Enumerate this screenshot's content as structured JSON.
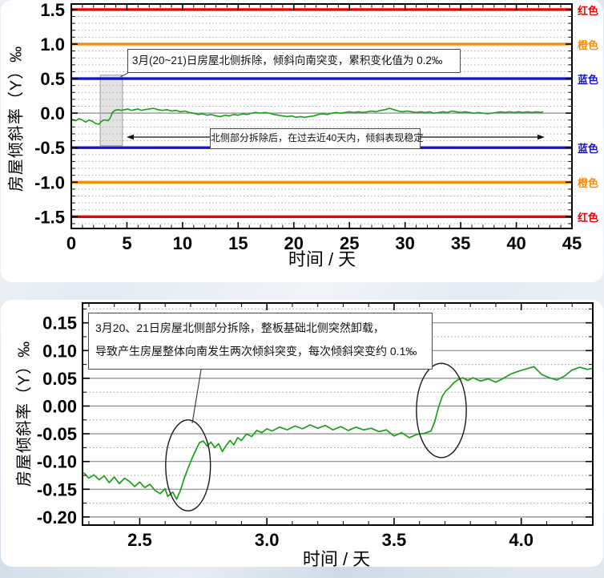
{
  "colors": {
    "series_green": "#18a018",
    "red_line": "#f00000",
    "orange_line": "#ff8a00",
    "blue_line": "#1414cc",
    "grid_gray": "#aaaaaa",
    "zero_line_gray": "#8a8a8a",
    "band_fill": "rgba(125,125,125,0.22)",
    "page_background": "#dde5f0"
  },
  "chart_data": [
    {
      "type": "line",
      "xlabel": "时间 / 天",
      "ylabel": "房屋倾斜率（Y）‰",
      "xlim": [
        0,
        45
      ],
      "ylim": [
        -1.5,
        1.5
      ],
      "xticks": [
        "0",
        "5",
        "10",
        "15",
        "20",
        "25",
        "30",
        "35",
        "40",
        "45"
      ],
      "yticks": [
        "1.5",
        "1.0",
        "0.5",
        "0.0",
        "-0.5",
        "-1.0",
        "-1.5"
      ],
      "x_minor_step": 1,
      "y_minor_step": 0.1,
      "grid": "horizontal dotted every 0.1, solid gray at 0",
      "legend": "none",
      "threshold_lines": [
        {
          "value": 1.5,
          "label": "红色",
          "color": "#f00000"
        },
        {
          "value": 1.0,
          "label": "橙色",
          "color": "#ff8a00"
        },
        {
          "value": 0.5,
          "label": "蓝色",
          "color": "#1414cc"
        },
        {
          "value": -0.5,
          "label": "蓝色",
          "color": "#1414cc"
        },
        {
          "value": -1.0,
          "label": "橙色",
          "color": "#ff8a00"
        },
        {
          "value": -1.5,
          "label": "红色",
          "color": "#f00000"
        }
      ],
      "highlight_band": {
        "x1": 2.6,
        "x2": 4.6,
        "y1": -0.47,
        "y2": 0.55
      },
      "annotations": [
        {
          "text": "3月(20~21)日房屋北侧拆除，倾斜向南突变，累积变化值为 0.2‰"
        },
        {
          "text": "北侧部分拆除后，在过去近40天内，倾斜表现稳定"
        }
      ],
      "series": [
        {
          "name": "房屋倾斜率Y",
          "color": "#18a018",
          "points": [
            [
              0,
              -0.09
            ],
            [
              0.4,
              -0.11
            ],
            [
              0.7,
              -0.08
            ],
            [
              1.0,
              -0.1
            ],
            [
              1.3,
              -0.13
            ],
            [
              1.6,
              -0.1
            ],
            [
              1.9,
              -0.12
            ],
            [
              2.2,
              -0.15
            ],
            [
              2.5,
              -0.16
            ],
            [
              2.7,
              -0.12
            ],
            [
              2.9,
              -0.1
            ],
            [
              3.1,
              -0.1
            ],
            [
              3.3,
              -0.11
            ],
            [
              3.5,
              -0.07
            ],
            [
              3.7,
              0.01
            ],
            [
              3.9,
              0.04
            ],
            [
              4.2,
              0.05
            ],
            [
              4.5,
              0.04
            ],
            [
              4.8,
              0.05
            ],
            [
              5.1,
              0.06
            ],
            [
              5.4,
              0.04
            ],
            [
              5.7,
              0.05
            ],
            [
              6.0,
              0.06
            ],
            [
              6.3,
              0.04
            ],
            [
              6.6,
              0.05
            ],
            [
              7.0,
              0.06
            ],
            [
              7.4,
              0.07
            ],
            [
              7.8,
              0.05
            ],
            [
              8.2,
              0.04
            ],
            [
              8.6,
              0.05
            ],
            [
              9.0,
              0.03
            ],
            [
              9.4,
              0.04
            ],
            [
              9.8,
              0.02
            ],
            [
              10.2,
              0.03
            ],
            [
              10.6,
              0.01
            ],
            [
              11.0,
              0.0
            ],
            [
              11.4,
              -0.02
            ],
            [
              11.8,
              -0.01
            ],
            [
              12.2,
              -0.03
            ],
            [
              12.6,
              -0.02
            ],
            [
              13.0,
              -0.04
            ],
            [
              13.4,
              -0.05
            ],
            [
              13.8,
              -0.03
            ],
            [
              14.2,
              -0.04
            ],
            [
              14.6,
              -0.02
            ],
            [
              15.0,
              -0.03
            ],
            [
              15.4,
              -0.01
            ],
            [
              15.8,
              -0.02
            ],
            [
              16.2,
              0.0
            ],
            [
              16.6,
              0.01
            ],
            [
              17.0,
              0.0
            ],
            [
              17.4,
              0.01
            ],
            [
              17.8,
              0.0
            ],
            [
              18.2,
              -0.02
            ],
            [
              18.6,
              -0.03
            ],
            [
              19.0,
              -0.04
            ],
            [
              19.4,
              -0.05
            ],
            [
              19.8,
              -0.04
            ],
            [
              20.2,
              -0.06
            ],
            [
              20.6,
              -0.05
            ],
            [
              21.0,
              -0.06
            ],
            [
              21.4,
              -0.05
            ],
            [
              21.8,
              -0.04
            ],
            [
              22.2,
              -0.02
            ],
            [
              22.6,
              -0.01
            ],
            [
              23.0,
              -0.02
            ],
            [
              23.4,
              0.0
            ],
            [
              23.8,
              0.01
            ],
            [
              24.2,
              0.0
            ],
            [
              24.6,
              0.01
            ],
            [
              25.0,
              0.02
            ],
            [
              25.4,
              0.01
            ],
            [
              25.8,
              0.02
            ],
            [
              26.2,
              0.01
            ],
            [
              26.6,
              0.02
            ],
            [
              27.0,
              0.03
            ],
            [
              27.4,
              0.02
            ],
            [
              27.8,
              0.04
            ],
            [
              28.2,
              0.05
            ],
            [
              28.6,
              0.07
            ],
            [
              29.0,
              0.05
            ],
            [
              29.4,
              0.03
            ],
            [
              29.8,
              0.02
            ],
            [
              30.2,
              0.03
            ],
            [
              30.6,
              0.02
            ],
            [
              31.0,
              0.01
            ],
            [
              31.4,
              0.02
            ],
            [
              31.8,
              0.01
            ],
            [
              32.2,
              0.02
            ],
            [
              32.6,
              0.0
            ],
            [
              33.0,
              0.01
            ],
            [
              33.4,
              0.02
            ],
            [
              33.8,
              0.01
            ],
            [
              34.2,
              0.03
            ],
            [
              34.6,
              0.02
            ],
            [
              35.0,
              0.01
            ],
            [
              35.4,
              0.02
            ],
            [
              35.8,
              0.01
            ],
            [
              36.2,
              0.0
            ],
            [
              36.6,
              0.01
            ],
            [
              37.0,
              0.0
            ],
            [
              37.4,
              -0.01
            ],
            [
              37.8,
              0.0
            ],
            [
              38.2,
              0.01
            ],
            [
              38.6,
              0.02
            ],
            [
              39.0,
              0.01
            ],
            [
              39.4,
              0.02
            ],
            [
              39.8,
              0.01
            ],
            [
              40.2,
              0.02
            ],
            [
              40.6,
              0.01
            ],
            [
              41.0,
              0.02
            ],
            [
              41.4,
              0.01
            ],
            [
              41.8,
              0.02
            ],
            [
              42.2,
              0.01
            ],
            [
              42.4,
              0.02
            ]
          ]
        }
      ]
    },
    {
      "type": "line",
      "xlabel": "时间 / 天",
      "ylabel": "房屋倾斜率（Y）‰",
      "xlim": [
        2.28,
        4.28
      ],
      "ylim": [
        -0.2,
        0.15
      ],
      "xticks": [
        "2.5",
        "3.0",
        "3.5",
        "4.0"
      ],
      "yticks": [
        "0.15",
        "0.10",
        "0.05",
        "0.00",
        "-0.05",
        "-0.10",
        "-0.15",
        "-0.20"
      ],
      "x_minor_step": 0.1,
      "y_minor_step": 0.025,
      "grid": "horizontal solid every 0.05, dotted every 0.025",
      "legend": "none",
      "annotation_lines": [
        "3月20、21日房屋北侧部分拆除，整板基础北侧突然卸载，",
        "导致产生房屋整体向南发生两次倾斜突变，每次倾斜突变约 0.1‰"
      ],
      "ellipse_highlights": [
        {
          "cx": 2.69,
          "cy": -0.107,
          "rx": 0.088,
          "ry": 0.082
        },
        {
          "cx": 3.686,
          "cy": -0.008,
          "rx": 0.098,
          "ry": 0.085
        }
      ],
      "series": [
        {
          "name": "房屋倾斜率Y",
          "color": "#18a018",
          "points": [
            [
              2.28,
              -0.12
            ],
            [
              2.3,
              -0.13
            ],
            [
              2.32,
              -0.124
            ],
            [
              2.34,
              -0.133
            ],
            [
              2.36,
              -0.126
            ],
            [
              2.38,
              -0.138
            ],
            [
              2.4,
              -0.128
            ],
            [
              2.42,
              -0.14
            ],
            [
              2.44,
              -0.13
            ],
            [
              2.46,
              -0.136
            ],
            [
              2.48,
              -0.145
            ],
            [
              2.5,
              -0.137
            ],
            [
              2.52,
              -0.147
            ],
            [
              2.54,
              -0.141
            ],
            [
              2.56,
              -0.152
            ],
            [
              2.58,
              -0.158
            ],
            [
              2.6,
              -0.149
            ],
            [
              2.61,
              -0.163
            ],
            [
              2.63,
              -0.155
            ],
            [
              2.645,
              -0.168
            ],
            [
              2.66,
              -0.152
            ],
            [
              2.675,
              -0.13
            ],
            [
              2.69,
              -0.112
            ],
            [
              2.705,
              -0.095
            ],
            [
              2.72,
              -0.08
            ],
            [
              2.735,
              -0.066
            ],
            [
              2.75,
              -0.063
            ],
            [
              2.765,
              -0.072
            ],
            [
              2.78,
              -0.065
            ],
            [
              2.795,
              -0.075
            ],
            [
              2.81,
              -0.068
            ],
            [
              2.825,
              -0.082
            ],
            [
              2.84,
              -0.071
            ],
            [
              2.855,
              -0.062
            ],
            [
              2.87,
              -0.07
            ],
            [
              2.885,
              -0.057
            ],
            [
              2.9,
              -0.062
            ],
            [
              2.92,
              -0.05
            ],
            [
              2.94,
              -0.055
            ],
            [
              2.96,
              -0.044
            ],
            [
              2.98,
              -0.048
            ],
            [
              3.0,
              -0.041
            ],
            [
              3.02,
              -0.045
            ],
            [
              3.05,
              -0.038
            ],
            [
              3.08,
              -0.043
            ],
            [
              3.11,
              -0.036
            ],
            [
              3.14,
              -0.041
            ],
            [
              3.17,
              -0.034
            ],
            [
              3.2,
              -0.04
            ],
            [
              3.23,
              -0.035
            ],
            [
              3.26,
              -0.043
            ],
            [
              3.29,
              -0.037
            ],
            [
              3.32,
              -0.044
            ],
            [
              3.35,
              -0.038
            ],
            [
              3.38,
              -0.043
            ],
            [
              3.41,
              -0.04
            ],
            [
              3.44,
              -0.046
            ],
            [
              3.47,
              -0.043
            ],
            [
              3.5,
              -0.054
            ],
            [
              3.53,
              -0.048
            ],
            [
              3.56,
              -0.057
            ],
            [
              3.59,
              -0.051
            ],
            [
              3.62,
              -0.049
            ],
            [
              3.645,
              -0.045
            ],
            [
              3.66,
              -0.028
            ],
            [
              3.675,
              -0.002
            ],
            [
              3.69,
              0.018
            ],
            [
              3.705,
              0.028
            ],
            [
              3.72,
              0.034
            ],
            [
              3.735,
              0.042
            ],
            [
              3.75,
              0.047
            ],
            [
              3.77,
              0.051
            ],
            [
              3.79,
              0.046
            ],
            [
              3.81,
              0.051
            ],
            [
              3.84,
              0.045
            ],
            [
              3.87,
              0.049
            ],
            [
              3.9,
              0.043
            ],
            [
              3.93,
              0.05
            ],
            [
              3.96,
              0.058
            ],
            [
              3.99,
              0.063
            ],
            [
              4.02,
              0.067
            ],
            [
              4.05,
              0.071
            ],
            [
              4.08,
              0.057
            ],
            [
              4.11,
              0.051
            ],
            [
              4.14,
              0.047
            ],
            [
              4.17,
              0.054
            ],
            [
              4.2,
              0.065
            ],
            [
              4.23,
              0.07
            ],
            [
              4.26,
              0.066
            ],
            [
              4.28,
              0.068
            ]
          ]
        }
      ]
    }
  ]
}
